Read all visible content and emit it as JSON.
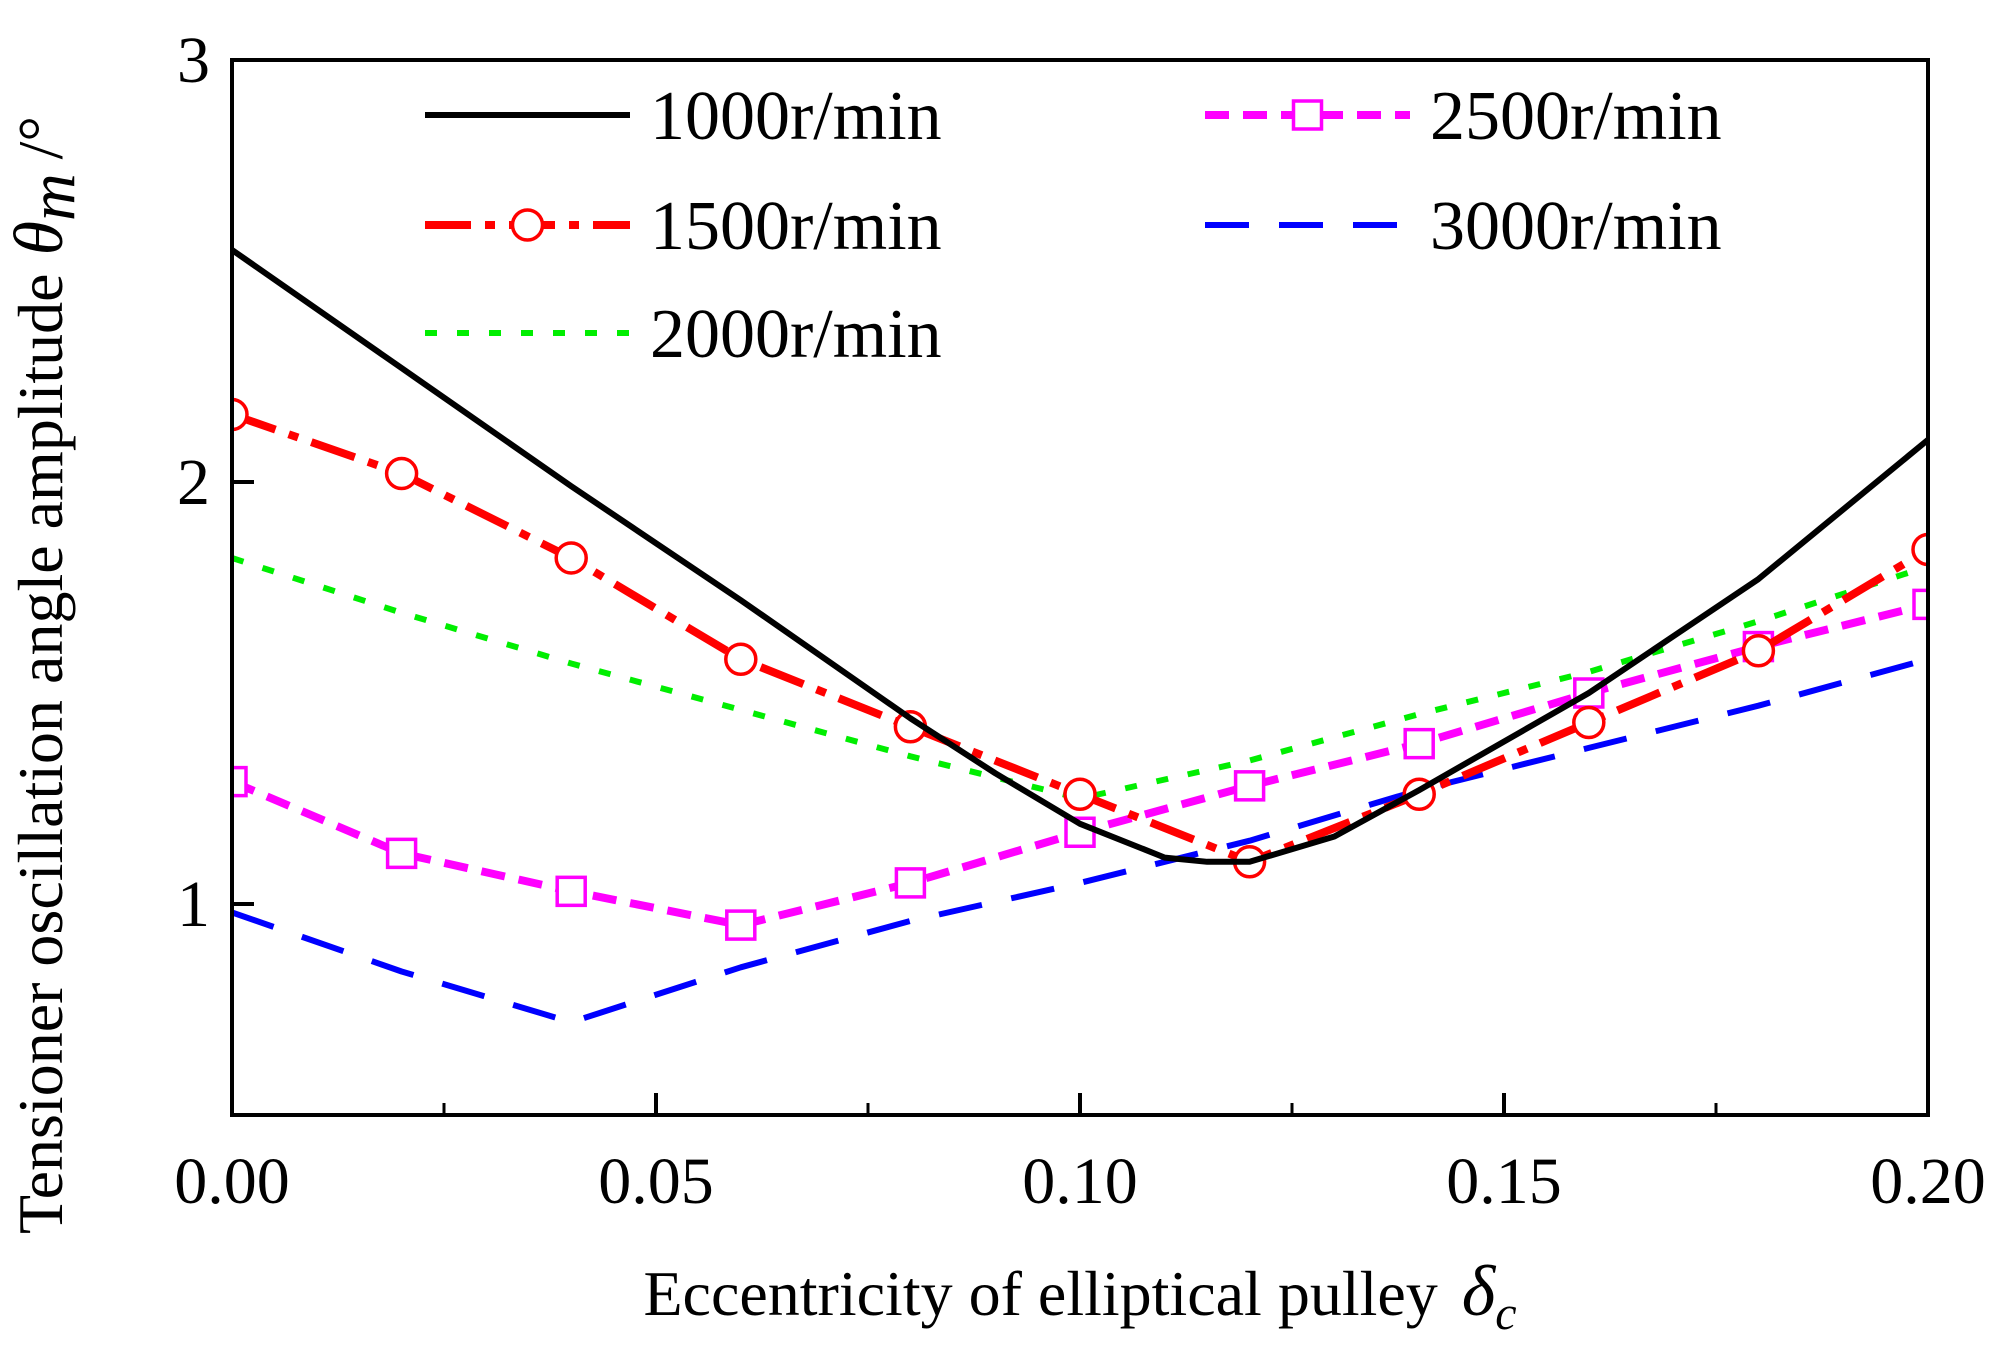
{
  "chart_data": {
    "type": "line",
    "xlabel": "Eccentricity of elliptical pulley",
    "xlabel_symbol": "δ",
    "xlabel_subscript": "c",
    "ylabel": "Tensioner oscillation angle amplitude",
    "ylabel_symbol": "θ",
    "ylabel_subscript": "m",
    "ylabel_unit": "/°",
    "xlim": [
      0,
      0.2
    ],
    "ylim": [
      0.5,
      3
    ],
    "x_ticks": [
      0.0,
      0.05,
      0.1,
      0.15,
      0.2
    ],
    "x_tick_labels": [
      "0.00",
      "0.05",
      "0.10",
      "0.15",
      "0.20"
    ],
    "y_ticks": [
      1,
      2,
      3
    ],
    "y_tick_labels": [
      "1",
      "2",
      "3"
    ],
    "x_minor_ticks": [
      0.025,
      0.075,
      0.125,
      0.175
    ],
    "legend_position": "top",
    "series": [
      {
        "name": "1000r/min",
        "color": "#000000",
        "style": "solid",
        "marker": "none",
        "x": [
          0,
          0.02,
          0.04,
          0.06,
          0.08,
          0.09,
          0.1,
          0.11,
          0.115,
          0.12,
          0.13,
          0.14,
          0.16,
          0.18,
          0.2
        ],
        "y": [
          2.55,
          2.27,
          1.99,
          1.72,
          1.44,
          1.31,
          1.19,
          1.11,
          1.1,
          1.1,
          1.16,
          1.27,
          1.5,
          1.77,
          2.1
        ]
      },
      {
        "name": "1500r/min",
        "color": "#ff0000",
        "style": "dashdot",
        "marker": "circle",
        "x": [
          0,
          0.02,
          0.04,
          0.06,
          0.08,
          0.1,
          0.12,
          0.14,
          0.16,
          0.18,
          0.2
        ],
        "y": [
          2.16,
          2.02,
          1.82,
          1.58,
          1.42,
          1.26,
          1.1,
          1.26,
          1.43,
          1.6,
          1.84
        ]
      },
      {
        "name": "2000r/min",
        "color": "#00ee00",
        "style": "dotted",
        "marker": "none",
        "x": [
          0,
          0.02,
          0.04,
          0.06,
          0.08,
          0.1,
          0.12,
          0.14,
          0.16,
          0.18,
          0.2
        ],
        "y": [
          1.82,
          1.69,
          1.57,
          1.46,
          1.35,
          1.25,
          1.34,
          1.45,
          1.55,
          1.67,
          1.8
        ]
      },
      {
        "name": "2500r/min",
        "color": "#ff00ff",
        "style": "dashed",
        "marker": "square",
        "x": [
          0,
          0.02,
          0.04,
          0.06,
          0.08,
          0.1,
          0.12,
          0.14,
          0.16,
          0.18,
          0.2
        ],
        "y": [
          1.29,
          1.12,
          1.03,
          0.95,
          1.05,
          1.17,
          1.28,
          1.38,
          1.5,
          1.61,
          1.71
        ]
      },
      {
        "name": "3000r/min",
        "color": "#0000ff",
        "style": "longdash",
        "marker": "none",
        "x": [
          0,
          0.02,
          0.04,
          0.06,
          0.08,
          0.1,
          0.12,
          0.14,
          0.16,
          0.18,
          0.2
        ],
        "y": [
          0.98,
          0.84,
          0.72,
          0.85,
          0.96,
          1.05,
          1.15,
          1.27,
          1.37,
          1.47,
          1.58
        ]
      }
    ]
  }
}
